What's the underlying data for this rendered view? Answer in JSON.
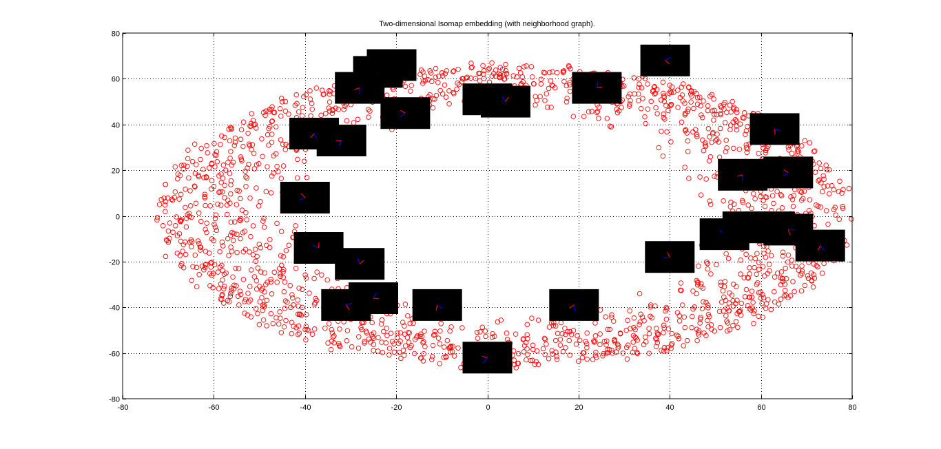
{
  "chart_data": {
    "type": "scatter",
    "title": "Two-dimensional Isomap embedding (with neighborhood graph).",
    "xlabel": "",
    "ylabel": "",
    "xlim": [
      -80,
      80
    ],
    "ylim": [
      -80,
      80
    ],
    "xticks": [
      -80,
      -60,
      -40,
      -20,
      0,
      20,
      40,
      60,
      80
    ],
    "yticks": [
      80,
      60,
      40,
      20,
      0,
      -20,
      -40,
      -60,
      -80
    ],
    "grid": true,
    "grid_style": "dotted",
    "marker": "circle-open",
    "marker_color": "#ff0000",
    "point_count_shown": 1800,
    "point_distribution": {
      "shape": "elliptical ring",
      "center": [
        4,
        0
      ],
      "inner_radius": [
        42,
        44
      ],
      "outer_radius": [
        76,
        66
      ]
    },
    "image_thumbnails": {
      "background_color": "#000000",
      "stroke_colors": [
        "#0000ff",
        "#ff0000"
      ],
      "centers": [
        [
          -21,
          66
        ],
        [
          -24,
          63
        ],
        [
          -28,
          56
        ],
        [
          -18,
          45
        ],
        [
          0,
          51
        ],
        [
          4,
          50
        ],
        [
          24,
          56
        ],
        [
          39,
          68
        ],
        [
          63,
          38
        ],
        [
          -38,
          36
        ],
        [
          -32,
          33
        ],
        [
          -40,
          8
        ],
        [
          -37,
          -14
        ],
        [
          -28,
          -21
        ],
        [
          -25,
          -36
        ],
        [
          -31,
          -39
        ],
        [
          -11,
          -39
        ],
        [
          19,
          -39
        ],
        [
          0,
          -62
        ],
        [
          40,
          -18
        ],
        [
          52,
          -8
        ],
        [
          57,
          -5
        ],
        [
          62,
          -5
        ],
        [
          66,
          -6
        ],
        [
          73,
          -13
        ],
        [
          56,
          18
        ],
        [
          66,
          19
        ]
      ]
    }
  }
}
